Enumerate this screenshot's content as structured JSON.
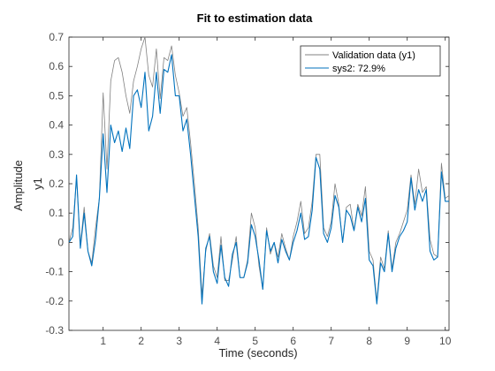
{
  "chart_data": {
    "type": "line",
    "title": "Fit to estimation data",
    "xlabel": "Time (seconds)",
    "ylabel_outer": "Amplitude",
    "ylabel_inner": "y1",
    "xlim": [
      0.1,
      10.1
    ],
    "ylim": [
      -0.3,
      0.7
    ],
    "xticks": [
      1,
      2,
      3,
      4,
      5,
      6,
      7,
      8,
      9,
      10
    ],
    "yticks": [
      -0.3,
      -0.2,
      -0.1,
      0,
      0.1,
      0.2,
      0.3,
      0.4,
      0.5,
      0.6,
      0.7
    ],
    "ytick_labels": [
      "-0.3",
      "-0.2",
      "-0.1",
      "0",
      "0.1",
      "0.2",
      "0.3",
      "0.4",
      "0.5",
      "0.6",
      "0.7"
    ],
    "grid": false,
    "legend_position": "top-right",
    "x": [
      0.1,
      0.2,
      0.3,
      0.4,
      0.5,
      0.6,
      0.7,
      0.8,
      0.9,
      1.0,
      1.1,
      1.2,
      1.3,
      1.4,
      1.5,
      1.6,
      1.7,
      1.8,
      1.9,
      2.0,
      2.1,
      2.2,
      2.3,
      2.4,
      2.5,
      2.6,
      2.7,
      2.8,
      2.9,
      3.0,
      3.1,
      3.2,
      3.3,
      3.4,
      3.5,
      3.6,
      3.7,
      3.8,
      3.9,
      4.0,
      4.1,
      4.2,
      4.3,
      4.4,
      4.5,
      4.6,
      4.7,
      4.8,
      4.9,
      5.0,
      5.1,
      5.2,
      5.3,
      5.4,
      5.5,
      5.6,
      5.7,
      5.8,
      5.9,
      6.0,
      6.1,
      6.2,
      6.3,
      6.4,
      6.5,
      6.6,
      6.7,
      6.8,
      6.9,
      7.0,
      7.1,
      7.2,
      7.3,
      7.4,
      7.5,
      7.6,
      7.7,
      7.8,
      7.9,
      8.0,
      8.1,
      8.2,
      8.3,
      8.4,
      8.5,
      8.6,
      8.7,
      8.8,
      8.9,
      9.0,
      9.1,
      9.2,
      9.3,
      9.4,
      9.5,
      9.6,
      9.7,
      9.8,
      9.9,
      10.0,
      10.1
    ],
    "series": [
      {
        "name": "Validation data (y1)",
        "color": "#808080",
        "values": [
          0.0,
          0.05,
          0.22,
          -0.01,
          0.12,
          -0.03,
          -0.07,
          0.05,
          0.15,
          0.51,
          0.25,
          0.55,
          0.62,
          0.63,
          0.58,
          0.5,
          0.44,
          0.55,
          0.6,
          0.66,
          0.7,
          0.57,
          0.53,
          0.66,
          0.49,
          0.63,
          0.62,
          0.67,
          0.57,
          0.51,
          0.43,
          0.46,
          0.34,
          0.2,
          0.05,
          -0.18,
          -0.03,
          0.03,
          -0.08,
          -0.12,
          0.02,
          -0.13,
          -0.13,
          -0.06,
          0.02,
          -0.12,
          -0.12,
          -0.06,
          0.1,
          0.05,
          -0.08,
          -0.16,
          0.05,
          -0.04,
          0.0,
          -0.05,
          0.03,
          -0.02,
          -0.06,
          0.02,
          0.07,
          0.14,
          0.03,
          0.05,
          0.14,
          0.3,
          0.3,
          0.05,
          0.02,
          0.07,
          0.2,
          0.13,
          0.0,
          0.12,
          0.13,
          0.04,
          0.13,
          0.09,
          0.19,
          -0.03,
          -0.06,
          -0.2,
          -0.05,
          -0.09,
          0.04,
          -0.09,
          0.0,
          0.03,
          0.07,
          0.11,
          0.23,
          0.13,
          0.25,
          0.17,
          0.19,
          0.01,
          -0.04,
          -0.05,
          0.27,
          0.15,
          0.16
        ]
      },
      {
        "name": "sys2: 72.9%",
        "color": "#0072bd",
        "values": [
          0.0,
          0.02,
          0.23,
          -0.02,
          0.1,
          -0.03,
          -0.08,
          0.01,
          0.15,
          0.37,
          0.17,
          0.4,
          0.34,
          0.38,
          0.31,
          0.39,
          0.32,
          0.5,
          0.52,
          0.46,
          0.58,
          0.38,
          0.43,
          0.58,
          0.44,
          0.59,
          0.58,
          0.64,
          0.5,
          0.5,
          0.38,
          0.42,
          0.3,
          0.16,
          0.02,
          -0.21,
          -0.02,
          0.02,
          -0.1,
          -0.14,
          -0.01,
          -0.12,
          -0.15,
          -0.04,
          0.0,
          -0.12,
          -0.12,
          -0.07,
          0.06,
          0.02,
          -0.06,
          -0.16,
          0.04,
          -0.03,
          0.0,
          -0.07,
          0.01,
          -0.03,
          -0.06,
          0.0,
          0.04,
          0.1,
          0.01,
          0.02,
          0.11,
          0.29,
          0.25,
          0.03,
          0.0,
          0.05,
          0.16,
          0.12,
          0.0,
          0.11,
          0.09,
          0.04,
          0.12,
          0.07,
          0.15,
          -0.06,
          -0.08,
          -0.21,
          -0.07,
          -0.1,
          0.03,
          -0.1,
          -0.02,
          0.02,
          0.04,
          0.07,
          0.22,
          0.11,
          0.18,
          0.14,
          0.18,
          -0.03,
          -0.06,
          -0.05,
          0.24,
          0.14,
          0.14
        ]
      }
    ]
  }
}
